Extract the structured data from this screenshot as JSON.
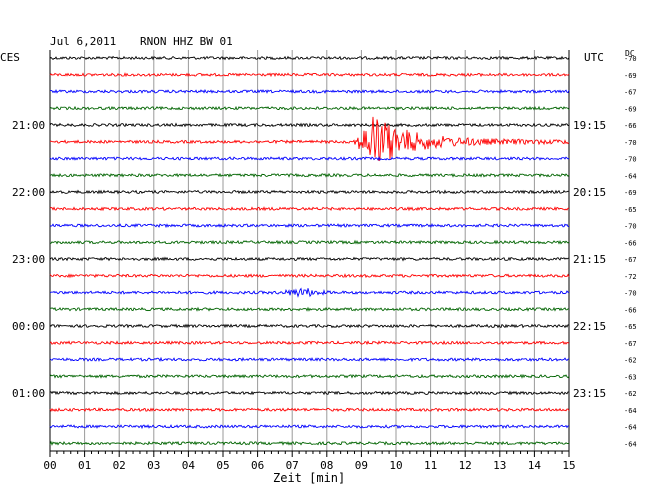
{
  "header": {
    "date": "Jul 6,2011",
    "station": "RNON HHZ BW 01"
  },
  "left_tz": "CES",
  "right_tz": "UTC",
  "dc_label": "DC",
  "chart_data": {
    "type": "seismogram-helicorder",
    "xlabel": "Zeit [min]",
    "x_ticks": [
      "00",
      "01",
      "02",
      "03",
      "04",
      "05",
      "06",
      "07",
      "08",
      "09",
      "10",
      "11",
      "12",
      "13",
      "14",
      "15"
    ],
    "xlim": [
      0,
      15
    ],
    "trace_colors": [
      "#000000",
      "#ff0000",
      "#0000ff",
      "#006400"
    ],
    "left_hour_labels": [
      {
        "trace": 4,
        "text": "21:00"
      },
      {
        "trace": 8,
        "text": "22:00"
      },
      {
        "trace": 12,
        "text": "23:00"
      },
      {
        "trace": 16,
        "text": "00:00"
      },
      {
        "trace": 20,
        "text": "01:00"
      }
    ],
    "right_hour_labels": [
      {
        "trace": 4,
        "text": "19:15"
      },
      {
        "trace": 8,
        "text": "20:15"
      },
      {
        "trace": 12,
        "text": "21:15"
      },
      {
        "trace": 16,
        "text": "22:15"
      },
      {
        "trace": 20,
        "text": "23:15"
      }
    ],
    "dc_offsets": [
      "-70",
      "-69",
      "-67",
      "-69",
      "-66",
      "-70",
      "-70",
      "-64",
      "-69",
      "-65",
      "-70",
      "-66",
      "-67",
      "-72",
      "-70",
      "-66",
      "-65",
      "-67",
      "-62",
      "-63",
      "-62",
      "-64",
      "-64",
      "-64"
    ],
    "events": [
      {
        "trace": 5,
        "start_min": 8.6,
        "peak_min": 9.3,
        "end_min": 15.0,
        "amplitude": "large"
      },
      {
        "trace": 14,
        "start_min": 6.2,
        "peak_min": 7.3,
        "end_min": 8.2,
        "amplitude": "small"
      }
    ]
  }
}
